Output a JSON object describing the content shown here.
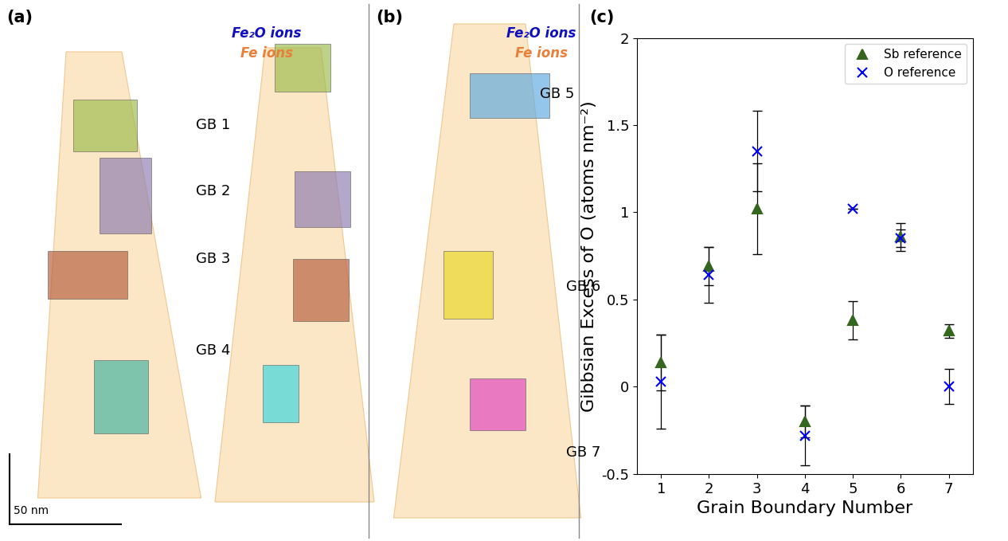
{
  "panel_a": {
    "label": "(a)",
    "legend": [
      {
        "text": "Fe₂O ions",
        "color": "#1010c0"
      },
      {
        "text": "Fe ions",
        "color": "#e8803a"
      }
    ],
    "boundaries": [
      "GB 1",
      "GB 2",
      "GB 3",
      "GB 4"
    ],
    "scale_bar": "50 nm"
  },
  "panel_b": {
    "label": "(b)",
    "legend": [
      {
        "text": "Fe₂O ions",
        "color": "#1010c0"
      },
      {
        "text": "Fe ions",
        "color": "#e8803a"
      }
    ],
    "boundaries": [
      "GB 5",
      "GB 6",
      "GB 7"
    ]
  },
  "chart_data": {
    "type": "scatter",
    "panel_label": "(c)",
    "xlabel": "Grain Boundary Number",
    "ylabel": "Gibbsian Excess of O (atoms nm⁻²)",
    "x": [
      1,
      2,
      3,
      4,
      5,
      6,
      7
    ],
    "series": [
      {
        "name": "Sb reference",
        "color": "#35661f",
        "marker": "triangle",
        "values": [
          0.14,
          0.69,
          1.02,
          -0.2,
          0.38,
          0.86,
          0.32
        ],
        "errors": [
          0.16,
          0.11,
          0.26,
          0.09,
          0.11,
          0.08,
          0.04
        ]
      },
      {
        "name": "O reference",
        "color": "#0000ff",
        "marker": "x",
        "values": [
          0.03,
          0.64,
          1.35,
          -0.28,
          1.02,
          0.85,
          0.0
        ],
        "errors": [
          0.27,
          0.16,
          0.23,
          0.17,
          0.0,
          0.05,
          0.1
        ]
      }
    ],
    "xlim": [
      0.5,
      7.5
    ],
    "xticks": [
      1,
      2,
      3,
      4,
      5,
      6,
      7
    ],
    "ylim": [
      -0.5,
      2
    ],
    "yticks": [
      -0.5,
      0,
      0.5,
      1,
      1.5,
      2
    ],
    "legend": "upper right",
    "grid": false
  }
}
